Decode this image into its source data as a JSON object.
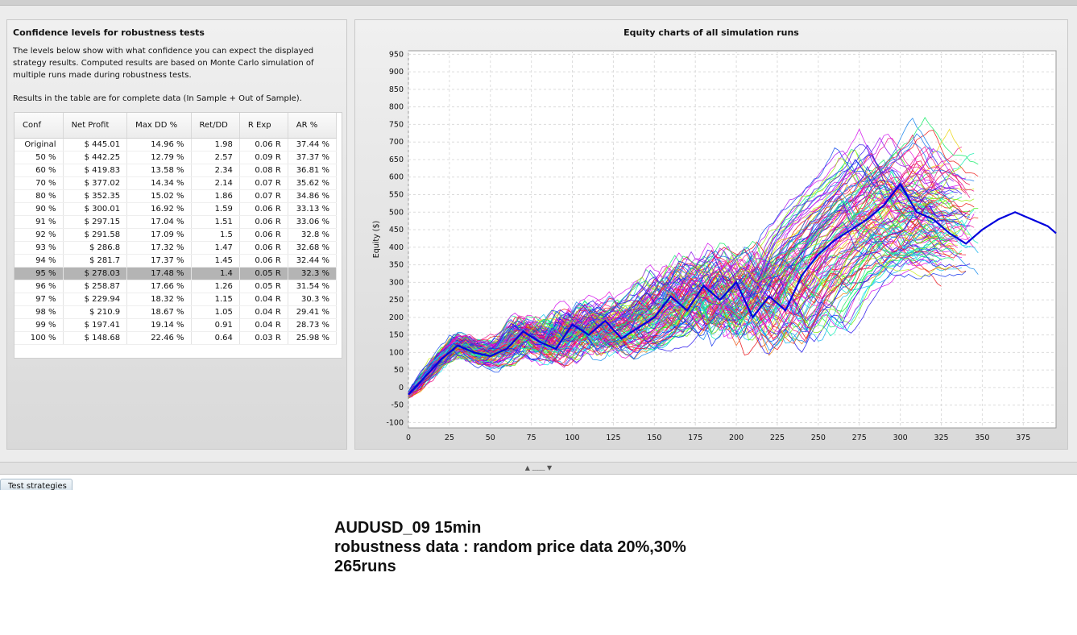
{
  "left_panel": {
    "title": "Confidence levels for robustness tests",
    "description": "The levels below show with what confidence you can expect the displayed strategy results. Computed results are based on Monte Carlo simulation of multiple runs made during robustness tests.",
    "note": "Results in the table are for complete data (In Sample + Out of Sample).",
    "table": {
      "columns": [
        "Conf",
        "Net Profit",
        "Max DD %",
        "Ret/DD",
        "R Exp",
        "AR %"
      ],
      "rows": [
        [
          "Original",
          "$ 445.01",
          "14.96 %",
          "1.98",
          "0.06 R",
          "37.44 %"
        ],
        [
          "50 %",
          "$ 442.25",
          "12.79 %",
          "2.57",
          "0.09 R",
          "37.37 %"
        ],
        [
          "60 %",
          "$ 419.83",
          "13.58 %",
          "2.34",
          "0.08 R",
          "36.81 %"
        ],
        [
          "70 %",
          "$ 377.02",
          "14.34 %",
          "2.14",
          "0.07 R",
          "35.62 %"
        ],
        [
          "80 %",
          "$ 352.35",
          "15.02 %",
          "1.86",
          "0.07 R",
          "34.86 %"
        ],
        [
          "90 %",
          "$ 300.01",
          "16.92 %",
          "1.59",
          "0.06 R",
          "33.13 %"
        ],
        [
          "91 %",
          "$ 297.15",
          "17.04 %",
          "1.51",
          "0.06 R",
          "33.06 %"
        ],
        [
          "92 %",
          "$ 291.58",
          "17.09 %",
          "1.5",
          "0.06 R",
          "32.8 %"
        ],
        [
          "93 %",
          "$ 286.8",
          "17.32 %",
          "1.47",
          "0.06 R",
          "32.68 %"
        ],
        [
          "94 %",
          "$ 281.7",
          "17.37 %",
          "1.45",
          "0.06 R",
          "32.44 %"
        ],
        [
          "95 %",
          "$ 278.03",
          "17.48 %",
          "1.4",
          "0.05 R",
          "32.3 %"
        ],
        [
          "96 %",
          "$ 258.87",
          "17.66 %",
          "1.26",
          "0.05 R",
          "31.54 %"
        ],
        [
          "97 %",
          "$ 229.94",
          "18.32 %",
          "1.15",
          "0.04 R",
          "30.3 %"
        ],
        [
          "98 %",
          "$ 210.9",
          "18.67 %",
          "1.05",
          "0.04 R",
          "29.41 %"
        ],
        [
          "99 %",
          "$ 197.41",
          "19.14 %",
          "0.91",
          "0.04 R",
          "28.73 %"
        ],
        [
          "100 %",
          "$ 148.68",
          "22.46 %",
          "0.64",
          "0.03 R",
          "25.98 %"
        ]
      ],
      "selected_row": "95 %"
    }
  },
  "right_panel": {
    "title": "Equity charts of all simulation runs"
  },
  "chart_data": {
    "type": "line",
    "title": "Equity charts of all simulation runs",
    "xlabel": "",
    "ylabel": "Equity ($)",
    "xlim": [
      0,
      395
    ],
    "ylim": [
      -115,
      960
    ],
    "x_ticks": [
      0,
      25,
      50,
      75,
      100,
      125,
      150,
      175,
      200,
      225,
      250,
      275,
      300,
      325,
      350,
      375
    ],
    "y_ticks": [
      950,
      900,
      850,
      800,
      750,
      700,
      650,
      600,
      550,
      500,
      450,
      400,
      350,
      300,
      250,
      200,
      150,
      100,
      50,
      0,
      -50,
      -100
    ],
    "grid": true,
    "runs": 265,
    "original_series": {
      "color": "#0000dd",
      "x": [
        0,
        10,
        20,
        30,
        40,
        50,
        60,
        70,
        80,
        90,
        100,
        110,
        120,
        130,
        140,
        150,
        160,
        170,
        180,
        190,
        200,
        210,
        220,
        230,
        240,
        250,
        260,
        270,
        280,
        290,
        300,
        310,
        320,
        330,
        340,
        350,
        360,
        370,
        380,
        390,
        395
      ],
      "y": [
        -20,
        30,
        80,
        120,
        100,
        90,
        110,
        160,
        130,
        110,
        180,
        150,
        190,
        140,
        170,
        200,
        260,
        220,
        290,
        250,
        300,
        200,
        260,
        220,
        320,
        380,
        420,
        450,
        480,
        520,
        580,
        500,
        480,
        440,
        410,
        450,
        480,
        500,
        480,
        460,
        440
      ]
    }
  },
  "splitter": {
    "handle": "▲ ﹏﹏ ▼"
  },
  "bottom_tab": {
    "label": "Test strategies"
  },
  "caption": {
    "line1": "AUDUSD_09 15min",
    "line2": "robustness data : random price data 20%,30%",
    "line3": "265runs"
  }
}
